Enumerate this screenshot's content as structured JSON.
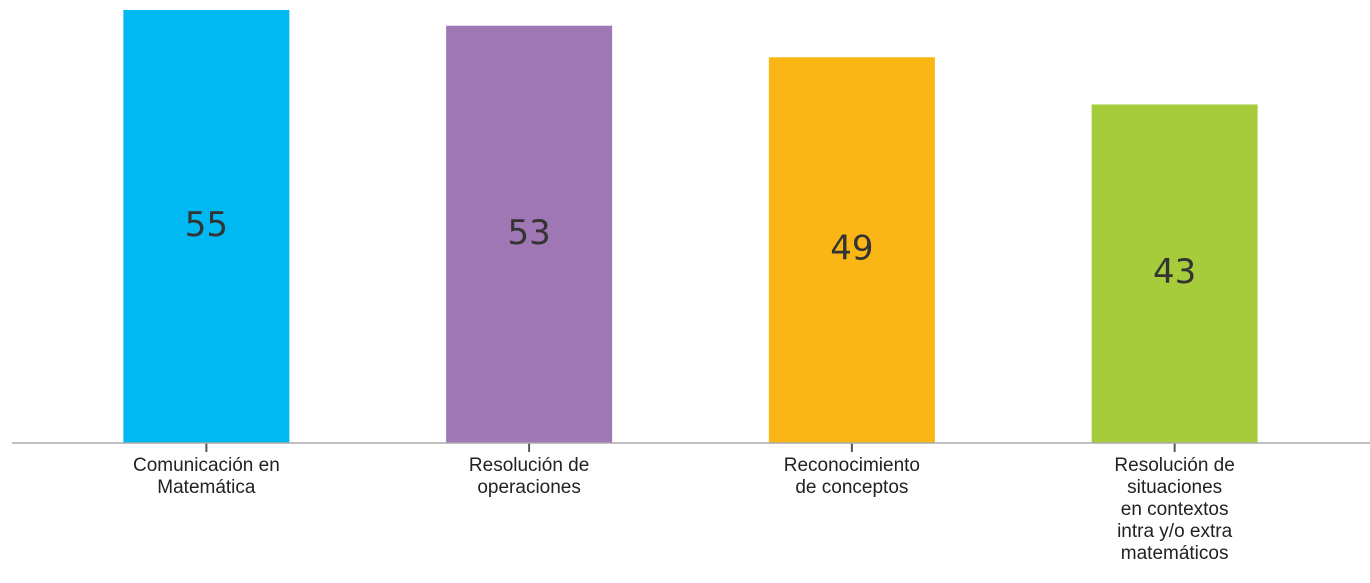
{
  "chart_data": {
    "type": "bar",
    "categories": [
      "Comunicación en\nMatemática",
      "Resolución de\noperaciones",
      "Reconocimiento\nde conceptos",
      "Resolución de\nsituaciones\nen contextos\nintra y/o extra\nmatemáticos"
    ],
    "values": [
      55,
      53,
      49,
      43
    ],
    "colors": [
      "#00b9f2",
      "#9e77b4",
      "#f9b614",
      "#a6cc3c"
    ]
  }
}
